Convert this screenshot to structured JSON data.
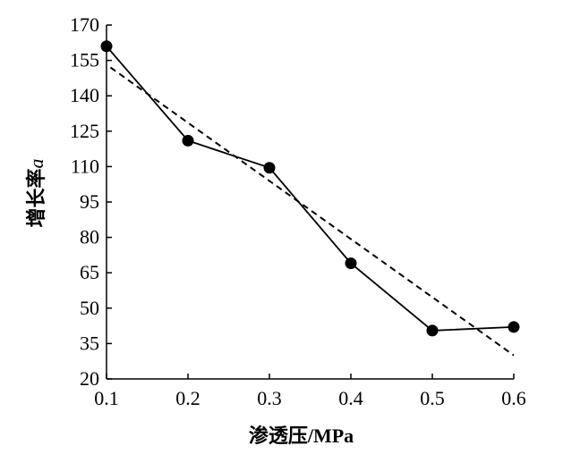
{
  "chart_data": {
    "type": "line",
    "xlabel": "渗透压/MPa",
    "ylabel": "增长率a",
    "ylabel_parts": {
      "text": "增长率",
      "italic": "a"
    },
    "x_ticks": [
      "0.1",
      "0.2",
      "0.3",
      "0.4",
      "0.5",
      "0.6"
    ],
    "y_ticks": [
      "20",
      "35",
      "50",
      "65",
      "80",
      "95",
      "110",
      "125",
      "140",
      "155",
      "170"
    ],
    "xlim": [
      0.1,
      0.6
    ],
    "ylim": [
      20,
      170
    ],
    "grid": false,
    "legend": "none",
    "series": [
      {
        "style": "solid-with-markers",
        "marker": "filled-circle",
        "color": "#000000",
        "x": [
          0.1,
          0.2,
          0.3,
          0.4,
          0.5,
          0.6
        ],
        "y": [
          161,
          121,
          109.5,
          69,
          40.5,
          42
        ]
      },
      {
        "style": "dashed",
        "color": "#000000",
        "x": [
          0.105,
          0.6
        ],
        "y": [
          152,
          30
        ]
      }
    ]
  }
}
